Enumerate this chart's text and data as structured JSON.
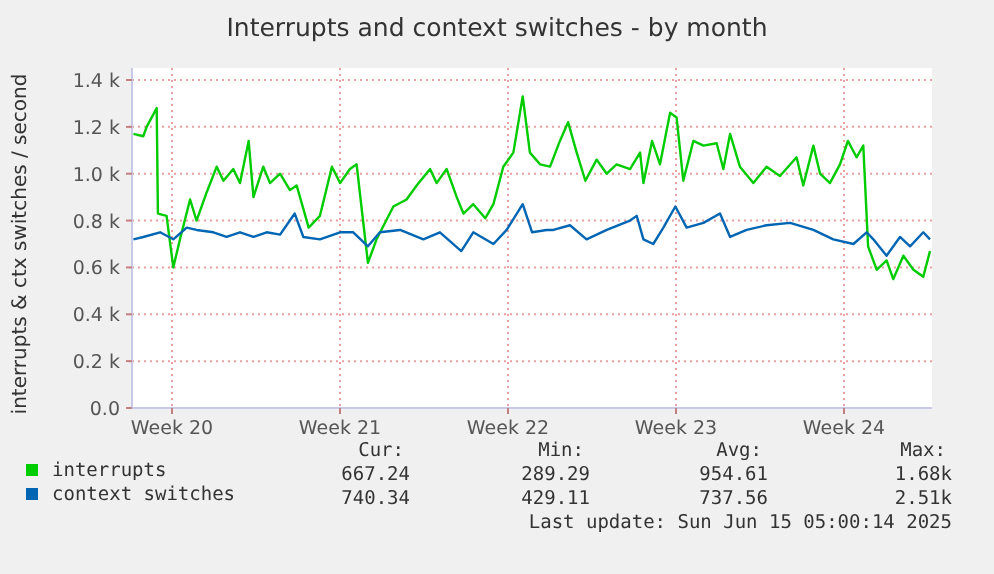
{
  "chart_data": {
    "type": "line",
    "title": "Interrupts and context switches - by month",
    "ylabel": "interrupts & ctx switches / second",
    "xlim": [
      "2025-05-13T20:00",
      "2025-06-16T04:00"
    ],
    "xticks": [
      {
        "value": "2025-05-15T12:00",
        "label": "Week 20"
      },
      {
        "value": "2025-05-22T12:00",
        "label": "Week 21"
      },
      {
        "value": "2025-05-29T12:00",
        "label": "Week 22"
      },
      {
        "value": "2025-06-05T12:00",
        "label": "Week 23"
      },
      {
        "value": "2025-06-12T12:00",
        "label": "Week 24"
      }
    ],
    "ylim": [
      0,
      1400
    ],
    "yticks": [
      {
        "value": 0,
        "label": "0.0"
      },
      {
        "value": 200,
        "label": "0.2 k"
      },
      {
        "value": 400,
        "label": "0.4 k"
      },
      {
        "value": 600,
        "label": "0.6 k"
      },
      {
        "value": 800,
        "label": "0.8 k"
      },
      {
        "value": 1000,
        "label": "1.0 k"
      },
      {
        "value": 1200,
        "label": "1.2 k"
      },
      {
        "value": 1400,
        "label": "1.4 k"
      }
    ],
    "grid": true,
    "legend": "bottom",
    "marker": "none",
    "line_style": "solid",
    "series": [
      {
        "name": "interrupts",
        "color": "#00cc00",
        "x": [
          "2025-05-13T21:26",
          "2025-05-14T07:17",
          "2025-05-14T10:38",
          "2025-05-14T20:43",
          "2025-05-14T21:55",
          "2025-05-15T06:34",
          "2025-05-15T13:17",
          "2025-05-15T20:00",
          "2025-05-16T06:05",
          "2025-05-16T12:34",
          "2025-05-16T22:38",
          "2025-05-17T08:43",
          "2025-05-17T15:26",
          "2025-05-18T01:17",
          "2025-05-18T08:00",
          "2025-05-18T16:38",
          "2025-05-18T21:26",
          "2025-05-19T07:17",
          "2025-05-19T14:00",
          "2025-05-20T00:05",
          "2025-05-20T09:55",
          "2025-05-20T16:38",
          "2025-05-20T23:22",
          "2025-05-21T04:38",
          "2025-05-21T15:55",
          "2025-05-22T03:55",
          "2025-05-22T12:05",
          "2025-05-22T21:55",
          "2025-05-23T04:38",
          "2025-05-23T09:26",
          "2025-05-23T15:55",
          "2025-05-24T00:34",
          "2025-05-24T17:22",
          "2025-05-25T06:34",
          "2025-05-25T16:38",
          "2025-05-26T06:05",
          "2025-05-26T12:34",
          "2025-05-26T22:38",
          "2025-05-27T08:43",
          "2025-05-27T15:26",
          "2025-05-28T01:17",
          "2025-05-28T13:17",
          "2025-05-28T21:26",
          "2025-05-29T07:17",
          "2025-05-29T17:22",
          "2025-05-30T02:43",
          "2025-05-30T09:55",
          "2025-05-30T20:00",
          "2025-05-31T06:05",
          "2025-05-31T15:55",
          "2025-06-01T00:05",
          "2025-06-01T08:43",
          "2025-06-01T17:22",
          "2025-06-02T04:38",
          "2025-06-02T14:43",
          "2025-06-03T00:34",
          "2025-06-03T14:00",
          "2025-06-04T00:05",
          "2025-06-04T03:26",
          "2025-06-04T12:05",
          "2025-06-04T20:00",
          "2025-06-05T06:05",
          "2025-06-05T12:34",
          "2025-06-05T19:17",
          "2025-06-06T05:22",
          "2025-06-06T15:26",
          "2025-06-07T04:38",
          "2025-06-07T11:22",
          "2025-06-07T18:05",
          "2025-06-08T03:55",
          "2025-06-08T17:22",
          "2025-06-09T06:34",
          "2025-06-09T20:00",
          "2025-06-10T12:34",
          "2025-06-10T19:17",
          "2025-06-11T05:22",
          "2025-06-11T12:05",
          "2025-06-11T21:55",
          "2025-06-12T08:00",
          "2025-06-12T15:55",
          "2025-06-13T00:34",
          "2025-06-13T07:17",
          "2025-06-13T12:05",
          "2025-06-13T20:43",
          "2025-06-14T06:34",
          "2025-06-14T13:17",
          "2025-06-14T23:22",
          "2025-06-15T09:26",
          "2025-06-15T19:17",
          "2025-06-16T02:00"
        ],
        "values": [
          1170,
          1160,
          1200,
          1280,
          830,
          820,
          600,
          720,
          890,
          800,
          920,
          1030,
          970,
          1020,
          960,
          1140,
          900,
          1030,
          960,
          1000,
          930,
          950,
          850,
          770,
          820,
          1030,
          960,
          1020,
          1040,
          860,
          620,
          720,
          860,
          890,
          950,
          1020,
          960,
          1020,
          900,
          830,
          870,
          810,
          870,
          1030,
          1090,
          1330,
          1090,
          1040,
          1030,
          1140,
          1220,
          1090,
          970,
          1060,
          1000,
          1040,
          1020,
          1090,
          960,
          1140,
          1040,
          1260,
          1240,
          970,
          1140,
          1120,
          1130,
          1020,
          1170,
          1030,
          960,
          1030,
          990,
          1070,
          950,
          1120,
          1000,
          960,
          1040,
          1140,
          1070,
          1120,
          690,
          590,
          630,
          550,
          650,
          590,
          560,
          670
        ]
      },
      {
        "name": "context switches",
        "color": "#0066b3",
        "x": [
          "2025-05-13T21:26",
          "2025-05-14T07:17",
          "2025-05-15T00:05",
          "2025-05-15T13:17",
          "2025-05-16T02:43",
          "2025-05-16T12:34",
          "2025-05-17T05:22",
          "2025-05-17T18:34",
          "2025-05-18T08:00",
          "2025-05-18T21:26",
          "2025-05-19T10:38",
          "2025-05-20T00:05",
          "2025-05-20T14:43",
          "2025-05-20T23:22",
          "2025-05-21T15:55",
          "2025-05-22T12:05",
          "2025-05-23T01:17",
          "2025-05-23T15:55",
          "2025-05-24T03:55",
          "2025-05-25T00:05",
          "2025-05-25T23:22",
          "2025-05-26T15:55",
          "2025-05-27T13:17",
          "2025-05-28T01:17",
          "2025-05-28T21:26",
          "2025-05-29T10:38",
          "2025-05-30T02:43",
          "2025-05-30T12:05",
          "2025-05-31T02:43",
          "2025-05-31T09:26",
          "2025-06-01T02:00",
          "2025-06-01T18:34",
          "2025-06-02T14:43",
          "2025-06-03T14:00",
          "2025-06-03T20:43",
          "2025-06-04T03:26",
          "2025-06-04T13:17",
          "2025-06-04T23:22",
          "2025-06-05T11:22",
          "2025-06-05T22:38",
          "2025-06-06T15:26",
          "2025-06-07T08:00",
          "2025-06-07T18:05",
          "2025-06-08T10:38",
          "2025-06-09T06:34",
          "2025-06-10T06:05",
          "2025-06-11T05:22",
          "2025-06-12T01:17",
          "2025-06-12T21:26",
          "2025-06-13T10:38",
          "2025-06-13T17:22",
          "2025-06-14T06:34",
          "2025-06-14T20:00",
          "2025-06-15T06:05",
          "2025-06-15T19:17",
          "2025-06-16T02:00"
        ],
        "values": [
          720,
          730,
          750,
          720,
          770,
          760,
          750,
          730,
          750,
          730,
          750,
          740,
          830,
          730,
          720,
          750,
          750,
          690,
          750,
          760,
          720,
          750,
          670,
          750,
          700,
          760,
          870,
          750,
          760,
          760,
          780,
          720,
          760,
          800,
          820,
          720,
          700,
          770,
          860,
          770,
          790,
          830,
          730,
          760,
          780,
          790,
          760,
          720,
          700,
          750,
          720,
          650,
          730,
          690,
          750,
          720
        ]
      }
    ],
    "annotations": [
      "Cur:",
      "Min:",
      "Avg:",
      "Max:",
      "667.24",
      "289.29",
      "954.61",
      "1.68k",
      "740.34",
      "429.11",
      "737.56",
      "2.51k",
      "Last update: Sun Jun 15 05:00:14 2025"
    ]
  }
}
